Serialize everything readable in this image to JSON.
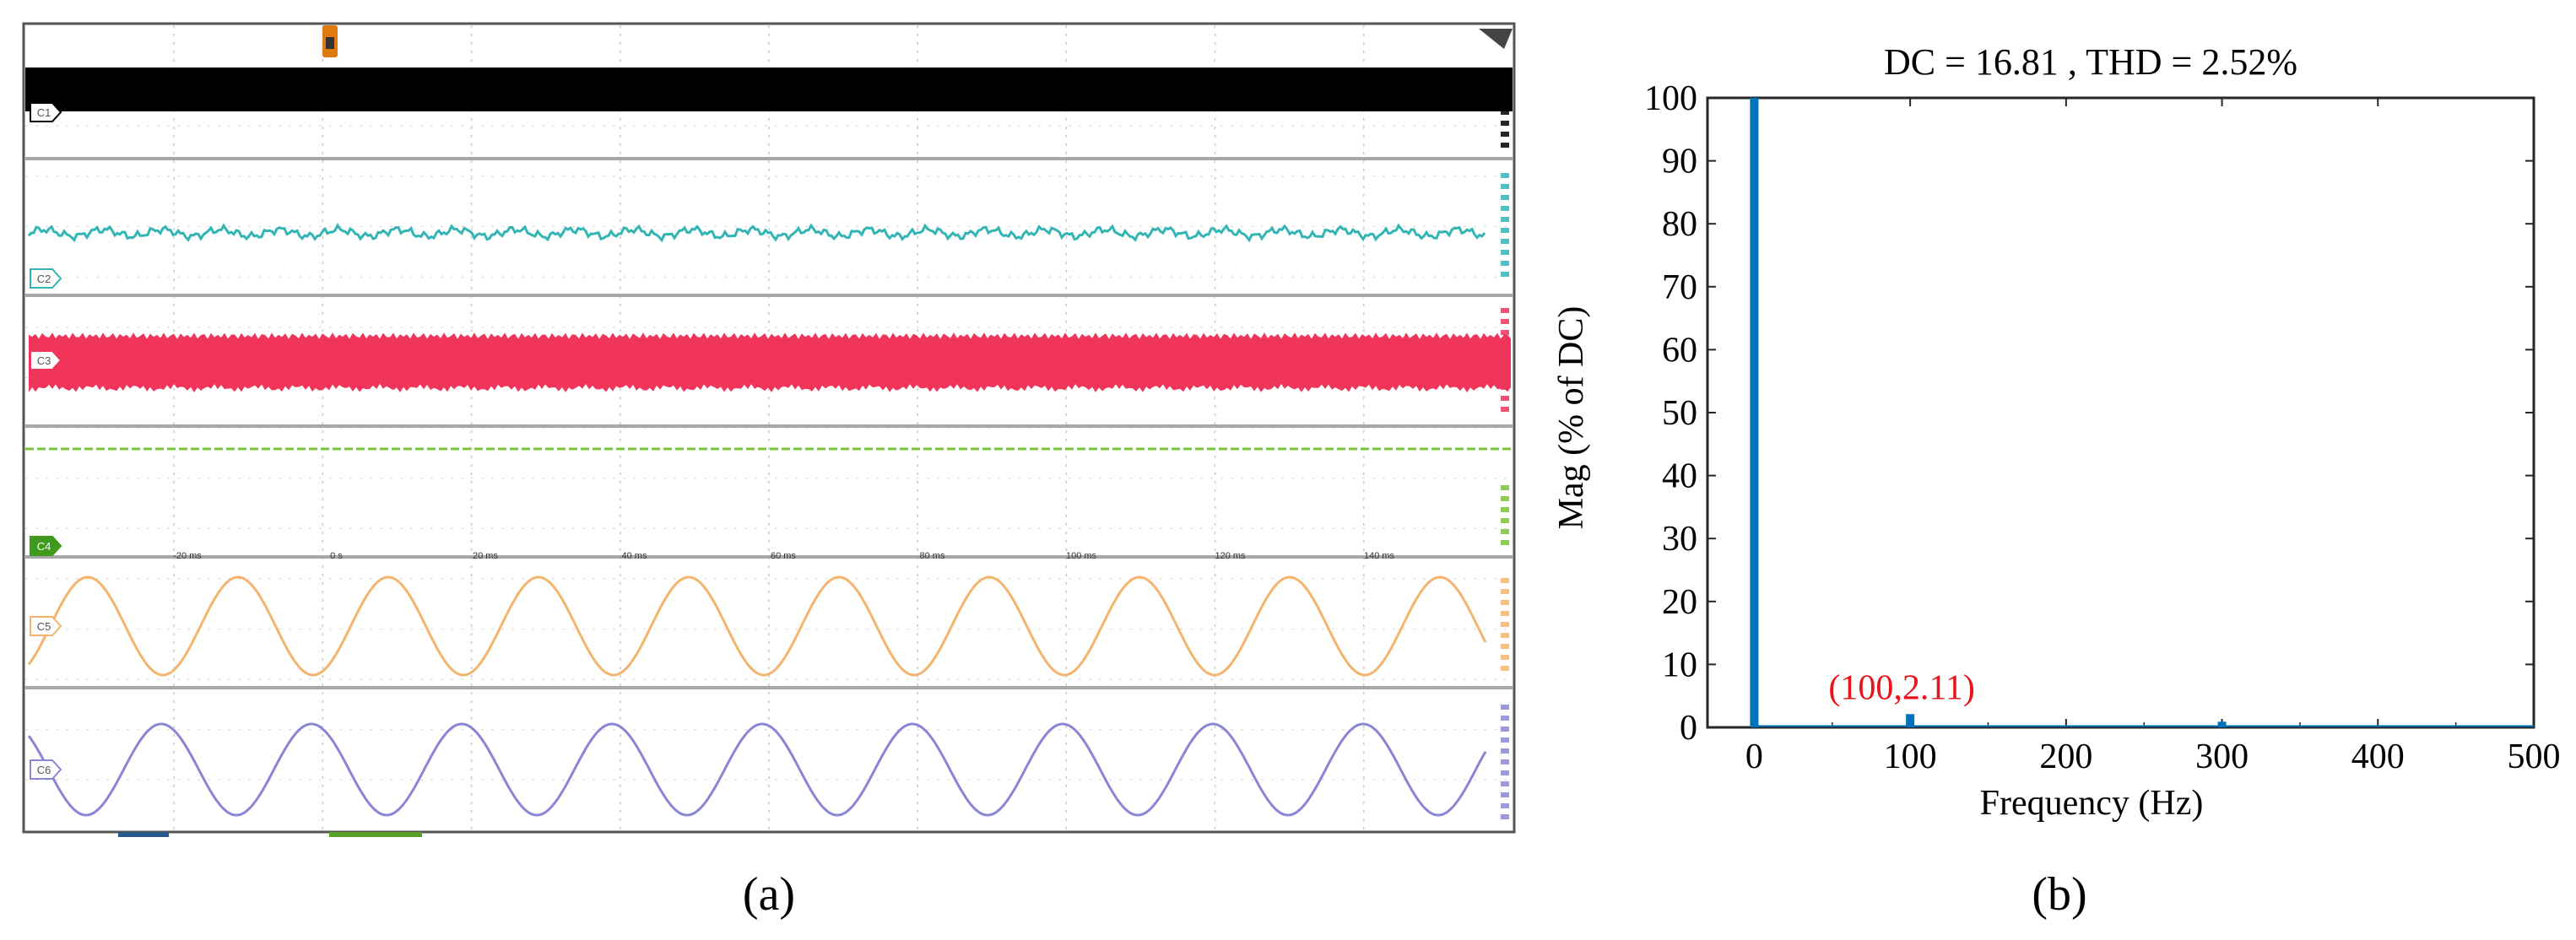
{
  "panel_labels": {
    "a": "(a)",
    "b": "(b)"
  },
  "scope": {
    "channels": [
      {
        "id": "C1",
        "color": "#000000"
      },
      {
        "id": "C2",
        "color": "#33b5b5"
      },
      {
        "id": "C3",
        "color": "#f0345a"
      },
      {
        "id": "C4",
        "color": "#7cc23a"
      },
      {
        "id": "C5",
        "color": "#f5b46e"
      },
      {
        "id": "C6",
        "color": "#8a86d6"
      }
    ],
    "time_ticks": [
      "-20 ms",
      "0 s",
      "20 ms",
      "40 ms",
      "60 ms",
      "80 ms",
      "100 ms",
      "120 ms",
      "140 ms"
    ]
  },
  "chart_data": {
    "type": "bar",
    "title": "DC = 16.81 , THD = 2.52%",
    "xlabel": "Frequency (Hz)",
    "ylabel": "Mag (% of DC)",
    "xlim": [
      -30,
      500
    ],
    "ylim": [
      0,
      100
    ],
    "xticks": [
      0,
      100,
      200,
      300,
      400,
      500
    ],
    "yticks": [
      0,
      10,
      20,
      30,
      40,
      50,
      60,
      70,
      80,
      90,
      100
    ],
    "bar_color": "#0072bd",
    "x": [
      0,
      100,
      300
    ],
    "values": [
      100,
      2.11,
      0.9
    ],
    "annotations": [
      {
        "text": "(100,2.11)",
        "x": 100,
        "y": 2.11,
        "color": "#e8141c"
      }
    ]
  }
}
